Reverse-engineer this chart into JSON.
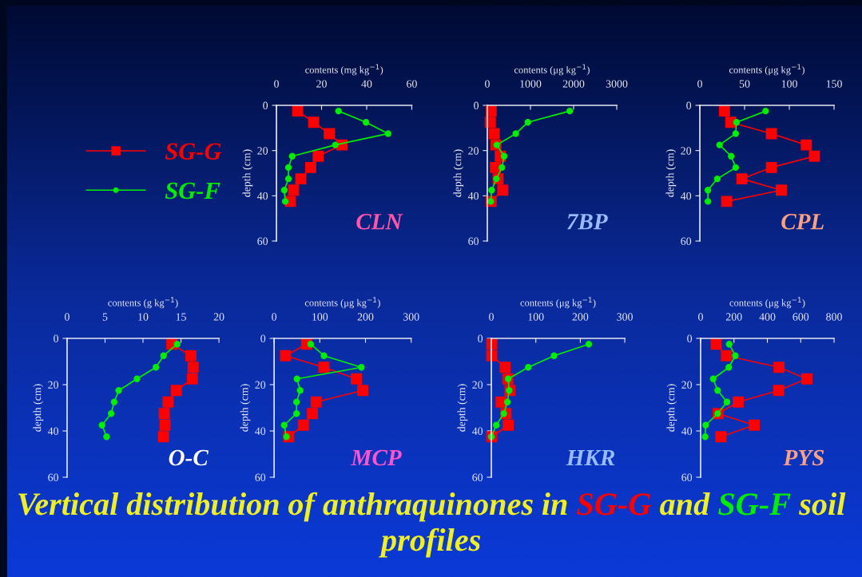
{
  "chart_data": [
    {
      "type": "line",
      "title": "Vertical distribution of anthraquinones in SG-G and SG-F soil profiles",
      "xlabel": "contents (mg kg$^{−1}$)",
      "ylabel": "depth (cm)",
      "annotations": [
        "CLN"
      ],
      "legend": "left",
      "xlim": [
        0,
        60
      ],
      "xticks": [
        0,
        20,
        40,
        60
      ],
      "ylim": [
        60,
        0
      ],
      "yticks": [
        0,
        20,
        40,
        60
      ],
      "series": [
        {
          "name": "SG-G",
          "color": "#ff0000",
          "marker": "square",
          "x": [
            9.4,
            16.5,
            23.4,
            29,
            18.5,
            15.2,
            10.8,
            7.6,
            6.2
          ],
          "values": [
            2.5,
            7.5,
            12.5,
            17.5,
            22.5,
            27.5,
            32.5,
            37.5,
            42.5
          ]
        },
        {
          "name": "SG-F",
          "color": "#00ee00",
          "marker": "circle",
          "x": [
            27.5,
            39.7,
            49.5,
            26.1,
            7,
            5.3,
            5.3,
            3.5,
            3.9
          ],
          "values": [
            2.5,
            7.5,
            12.5,
            17.5,
            22.5,
            27.5,
            32.5,
            37.5,
            42.5
          ]
        }
      ]
    },
    {
      "type": "line",
      "xlabel": "contents (μg kg$^{−1}$)",
      "ylabel": "depth (cm)",
      "annotations": [
        "7BP"
      ],
      "xlim": [
        0,
        3000
      ],
      "xticks": [
        0,
        1000,
        2000,
        3000
      ],
      "ylim": [
        60,
        0
      ],
      "yticks": [
        0,
        20,
        40,
        60
      ],
      "series": [
        {
          "color": "#ff0000",
          "marker": "square",
          "x": [
            90,
            70,
            160,
            200,
            300,
            190,
            250,
            360,
            90
          ],
          "values": [
            2.5,
            7.5,
            12.5,
            17.5,
            22.5,
            27.5,
            32.5,
            37.5,
            42.5
          ]
        },
        {
          "color": "#00ee00",
          "marker": "circle",
          "x": [
            1910,
            940,
            660,
            220,
            390,
            340,
            210,
            100,
            80
          ],
          "values": [
            2.5,
            7.5,
            12.5,
            17.5,
            22.5,
            27.5,
            32.5,
            37.5,
            42.5
          ]
        }
      ]
    },
    {
      "type": "line",
      "xlabel": "contents (μg kg$^{−1}$)",
      "ylabel": "depth (cm)",
      "annotations": [
        "CPL"
      ],
      "xlim": [
        0,
        150
      ],
      "xticks": [
        0,
        50,
        100,
        150
      ],
      "ylim": [
        60,
        0
      ],
      "yticks": [
        0,
        20,
        40,
        60
      ],
      "series": [
        {
          "color": "#ff0000",
          "marker": "square",
          "x": [
            27.5,
            34.5,
            80,
            119,
            128,
            80,
            47,
            91,
            30
          ],
          "values": [
            2.5,
            7.5,
            12.5,
            17.5,
            22.5,
            27.5,
            32.5,
            37.5,
            42.5
          ]
        },
        {
          "color": "#00ee00",
          "marker": "circle",
          "x": [
            73.5,
            41,
            40,
            22,
            35,
            40,
            19.5,
            9,
            9
          ],
          "values": [
            2.5,
            7.5,
            12.5,
            17.5,
            22.5,
            27.5,
            32.5,
            37.5,
            42.5
          ]
        }
      ]
    },
    {
      "type": "line",
      "xlabel": "contents (g kg$^{−1}$)",
      "ylabel": "depth (cm)",
      "annotations": [
        "O-C"
      ],
      "xlim": [
        0,
        20
      ],
      "xticks": [
        0,
        5,
        10,
        15,
        20
      ],
      "ylim": [
        60,
        0
      ],
      "yticks": [
        0,
        20,
        40,
        60
      ],
      "series": [
        {
          "color": "#ff0000",
          "marker": "square",
          "x": [
            13.8,
            16.3,
            16.6,
            16.5,
            14.4,
            13.3,
            12.8,
            12.9,
            12.7
          ],
          "values": [
            2.5,
            7.5,
            12.5,
            17.5,
            22.5,
            27.5,
            32.5,
            37.5,
            42.5
          ]
        },
        {
          "color": "#00ee00",
          "marker": "circle",
          "x": [
            14.5,
            12.7,
            11.7,
            9.2,
            6.8,
            6.2,
            5.8,
            4.6,
            5.2
          ],
          "values": [
            2.5,
            7.5,
            12.5,
            17.5,
            22.5,
            27.5,
            32.5,
            37.5,
            42.5
          ]
        }
      ]
    },
    {
      "type": "line",
      "xlabel": "contents (μg kg$^{−1}$)",
      "ylabel": "depth (cm)",
      "annotations": [
        "MCP"
      ],
      "xlim": [
        0,
        300
      ],
      "xticks": [
        0,
        100,
        200,
        300
      ],
      "ylim": [
        60,
        0
      ],
      "yticks": [
        0,
        20,
        40,
        60
      ],
      "series": [
        {
          "color": "#ff0000",
          "marker": "square",
          "x": [
            71,
            25,
            109,
            180,
            194,
            92,
            84,
            64,
            32
          ],
          "values": [
            2.5,
            7.5,
            12.5,
            17.5,
            22.5,
            27.5,
            32.5,
            37.5,
            42.5
          ]
        },
        {
          "color": "#00ee00",
          "marker": "circle",
          "x": [
            80,
            109,
            191,
            50,
            57,
            49,
            49,
            22,
            27
          ],
          "values": [
            2.5,
            7.5,
            12.5,
            17.5,
            22.5,
            27.5,
            32.5,
            37.5,
            42.5
          ]
        }
      ]
    },
    {
      "type": "line",
      "xlabel": "contents (μg kg$^{−1}$)",
      "ylabel": "depth (cm)",
      "annotations": [
        "HKR"
      ],
      "xlim": [
        0,
        300
      ],
      "xticks": [
        0,
        100,
        200,
        300
      ],
      "ylim": [
        60,
        0
      ],
      "yticks": [
        0,
        20,
        40,
        60
      ],
      "series": [
        {
          "color": "#ff0000",
          "marker": "square",
          "x": [
            1,
            1,
            31,
            37,
            42,
            22,
            33,
            38,
            1
          ],
          "values": [
            2.5,
            7.5,
            12.5,
            17.5,
            22.5,
            27.5,
            32.5,
            37.5,
            42.5
          ]
        },
        {
          "color": "#00ee00",
          "marker": "circle",
          "x": [
            219,
            141,
            83,
            38,
            40,
            36,
            28,
            11,
            0
          ],
          "values": [
            2.5,
            7.5,
            12.5,
            17.5,
            22.5,
            27.5,
            32.5,
            37.5,
            42.5
          ]
        }
      ]
    },
    {
      "type": "line",
      "xlabel": "contents (μg kg$^{−1}$)",
      "ylabel": "depth (cm)",
      "annotations": [
        "PYS"
      ],
      "xlim": [
        0,
        800
      ],
      "xticks": [
        0,
        200,
        400,
        600,
        800
      ],
      "ylim": [
        60,
        0
      ],
      "yticks": [
        0,
        20,
        40,
        60
      ],
      "series": [
        {
          "color": "#ff0000",
          "marker": "square",
          "x": [
            93,
            155,
            470,
            637,
            468,
            225,
            105,
            321,
            121
          ],
          "values": [
            2.5,
            7.5,
            12.5,
            17.5,
            22.5,
            27.5,
            32.5,
            37.5,
            42.5
          ]
        },
        {
          "color": "#00ee00",
          "marker": "circle",
          "x": [
            171,
            208,
            169,
            75,
            102,
            158,
            102,
            30,
            27
          ],
          "values": [
            2.5,
            7.5,
            12.5,
            17.5,
            22.5,
            27.5,
            32.5,
            37.5,
            42.5
          ]
        }
      ]
    }
  ]
}
